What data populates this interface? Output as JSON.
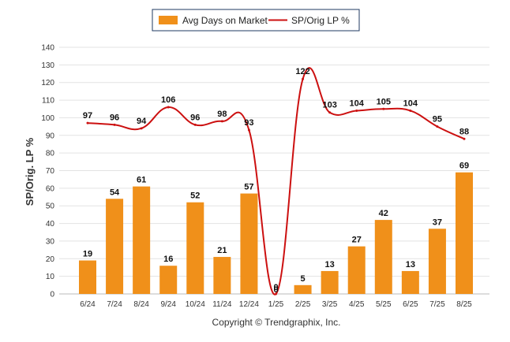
{
  "chart_data": {
    "type": "bar",
    "categories": [
      "6/24",
      "7/24",
      "8/24",
      "9/24",
      "10/24",
      "11/24",
      "12/24",
      "1/25",
      "2/25",
      "3/25",
      "4/25",
      "5/25",
      "6/25",
      "7/25",
      "8/25"
    ],
    "series": [
      {
        "name": "Avg Days on Market",
        "type": "bar",
        "color": "#f0901a",
        "values": [
          19,
          54,
          61,
          16,
          52,
          21,
          57,
          0,
          5,
          13,
          27,
          42,
          13,
          37,
          69
        ]
      },
      {
        "name": "SP/Orig LP %",
        "type": "line",
        "color": "#cc1010",
        "values": [
          97,
          96,
          94,
          106,
          96,
          98,
          93,
          0,
          122,
          103,
          104,
          105,
          104,
          95,
          88
        ]
      }
    ],
    "ylabel": "SP/Orig. LP %",
    "ylim": [
      0,
      140
    ],
    "yticks": [
      0,
      10,
      20,
      30,
      40,
      50,
      60,
      70,
      80,
      90,
      100,
      110,
      120,
      130,
      140
    ],
    "grid": true,
    "legend_position": "top-center"
  },
  "copyright": "Copyright © Trendgraphix, Inc."
}
